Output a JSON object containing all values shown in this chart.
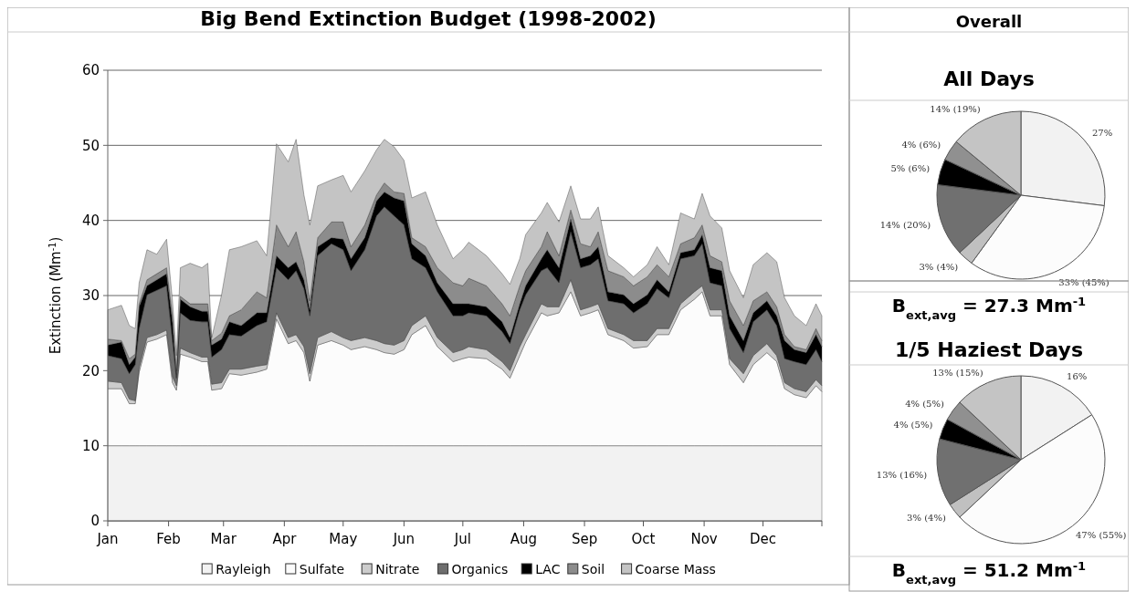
{
  "chart_data": [
    {
      "type": "area",
      "stacked": true,
      "title": "Big Bend Extinction Budget (1998-2002)",
      "ylabel": "Extinction (Mm$^{-1}$)",
      "legend": "bottom",
      "grid": "y",
      "x": [
        "--01-01",
        "--01-08",
        "--01-12",
        "--01-15",
        "--01-17",
        "--01-21",
        "--01-26",
        "--01-31",
        "--02-03",
        "--02-05",
        "--02-07",
        "--02-12",
        "--02-18",
        "--02-21",
        "--02-23",
        "--02-28",
        "--03-04",
        "--03-10",
        "--03-18",
        "--03-23",
        "--03-28",
        "--04-03",
        "--04-07",
        "--04-11",
        "--04-14",
        "--04-18",
        "--04-25",
        "--05-01",
        "--05-05",
        "--05-12",
        "--05-18",
        "--05-22",
        "--05-27",
        "--06-01",
        "--06-05",
        "--06-12",
        "--06-18",
        "--06-26",
        "--07-01",
        "--07-04",
        "--07-13",
        "--07-21",
        "--07-25",
        "--07-30",
        "--08-02",
        "--08-10",
        "--08-13",
        "--08-19",
        "--08-25",
        "--08-30",
        "--09-04",
        "--09-08",
        "--09-13",
        "--09-21",
        "--09-26",
        "--10-03",
        "--10-08",
        "--10-14",
        "--10-20",
        "--10-27",
        "--10-31",
        "--11-04",
        "--11-10",
        "--11-14",
        "--11-21",
        "--11-26",
        "--12-03",
        "--12-08",
        "--12-12",
        "--12-17",
        "--12-23",
        "--12-28",
        "--12-31"
      ],
      "xlim": [
        "--01-01",
        "--12-31"
      ],
      "xticks": [
        {
          "value": "--01-01",
          "label": "Jan"
        },
        {
          "value": "--02-01",
          "label": "Feb"
        },
        {
          "value": "--03-01",
          "label": "Mar"
        },
        {
          "value": "--04-01",
          "label": "Apr"
        },
        {
          "value": "--05-01",
          "label": "May"
        },
        {
          "value": "--06-01",
          "label": "Jun"
        },
        {
          "value": "--07-01",
          "label": "Jul"
        },
        {
          "value": "--08-01",
          "label": "Aug"
        },
        {
          "value": "--09-01",
          "label": "Sep"
        },
        {
          "value": "--10-01",
          "label": "Oct"
        },
        {
          "value": "--11-01",
          "label": "Nov"
        },
        {
          "value": "--12-01",
          "label": "Dec"
        },
        {
          "value": "--12-31",
          "label": null
        }
      ],
      "ylim": [
        0,
        60
      ],
      "yticks": [
        0,
        10,
        20,
        30,
        40,
        50,
        60
      ],
      "series": [
        {
          "name": "Rayleigh",
          "color": "#f2f2f2",
          "values": [
            10,
            10,
            10,
            10,
            10,
            10,
            10,
            10,
            10,
            10,
            10,
            10,
            10,
            10,
            10,
            10,
            10,
            10,
            10,
            10,
            10,
            10,
            10,
            10,
            10,
            10,
            10,
            10,
            10,
            10,
            10,
            10,
            10,
            10,
            10,
            10,
            10,
            10,
            10,
            10,
            10,
            10,
            10,
            10,
            10,
            10,
            10,
            10,
            10,
            10,
            10,
            10,
            10,
            10,
            10,
            10,
            10,
            10,
            10,
            10,
            10,
            10,
            10,
            10,
            10,
            10,
            10,
            10,
            10,
            10,
            10,
            10,
            10
          ]
        },
        {
          "name": "Sulfate",
          "color": "#fcfcfc",
          "values": [
            7.6,
            7.6,
            5.6,
            5.6,
            9.8,
            13.8,
            14.2,
            14.8,
            8.4,
            7.4,
            12.2,
            11.8,
            11.2,
            11.2,
            7.4,
            7.6,
            9.6,
            9.4,
            9.8,
            10.2,
            16.9,
            13.6,
            14.0,
            12.4,
            8.6,
            13.4,
            14.0,
            13.4,
            12.8,
            13.2,
            12.8,
            12.4,
            12.2,
            12.8,
            14.8,
            16.0,
            13.2,
            11.2,
            11.6,
            11.8,
            11.6,
            10.2,
            9.0,
            12.0,
            13.8,
            17.7,
            17.3,
            17.7,
            20.5,
            17.3,
            17.7,
            18.1,
            14.8,
            14.0,
            13.0,
            13.2,
            14.8,
            14.8,
            18.1,
            19.5,
            20.5,
            17.3,
            17.3,
            10.8,
            8.4,
            10.8,
            12.4,
            11.2,
            7.6,
            6.8,
            6.4,
            8.0,
            7.2
          ]
        },
        {
          "name": "Nitrate",
          "color": "#cccccc",
          "values": [
            1.0,
            0.8,
            0.6,
            0.4,
            0.6,
            0.6,
            0.6,
            0.6,
            0.8,
            0.6,
            0.8,
            0.6,
            0.6,
            0.6,
            0.8,
            0.8,
            0.6,
            0.8,
            0.8,
            0.6,
            0.8,
            0.8,
            0.8,
            0.8,
            1.0,
            1.0,
            1.2,
            1.0,
            1.2,
            1.2,
            1.2,
            1.2,
            1.2,
            1.2,
            1.2,
            1.3,
            1.2,
            1.2,
            1.2,
            1.4,
            1.2,
            1.0,
            1.0,
            1.2,
            1.0,
            1.2,
            1.2,
            0.8,
            1.6,
            0.8,
            0.8,
            0.8,
            0.8,
            0.8,
            1.0,
            0.8,
            0.8,
            0.8,
            0.8,
            1.0,
            0.8,
            0.8,
            0.8,
            0.8,
            1.2,
            1.2,
            1.2,
            0.8,
            0.8,
            0.8,
            0.8,
            0.8,
            0.8
          ]
        },
        {
          "name": "Organics",
          "color": "#6e6e6e",
          "values": [
            3.4,
            3.2,
            3.4,
            4.8,
            5.2,
            5.7,
            5.9,
            5.9,
            4.8,
            1.0,
            4.7,
            4.3,
            4.7,
            4.7,
            3.6,
            4.4,
            4.6,
            4.4,
            5.4,
            5.7,
            6.0,
            7.7,
            8.5,
            7.7,
            7.7,
            10.9,
            11.7,
            11.7,
            9.3,
            11.7,
            16.6,
            18.2,
            17.2,
            15.4,
            8.9,
            6.4,
            6.1,
            4.9,
            4.5,
            4.5,
            4.5,
            4.0,
            3.6,
            4.9,
            5.3,
            4.4,
            5.2,
            3.2,
            6.4,
            5.6,
            5.6,
            6.0,
            3.7,
            4.1,
            3.7,
            4.9,
            5.3,
            4.1,
            6.0,
            4.8,
            5.6,
            3.6,
            3.2,
            4.0,
            2.8,
            4.5,
            4.5,
            4.0,
            3.2,
            3.6,
            3.6,
            4.0,
            3.2
          ]
        },
        {
          "name": "LAC",
          "color": "#000000",
          "values": [
            1.4,
            2.2,
            1.2,
            1.0,
            2.9,
            1.2,
            1.4,
            1.6,
            2.5,
            0.5,
            1.8,
            1.8,
            1.4,
            1.4,
            1.6,
            1.4,
            1.7,
            1.4,
            1.7,
            1.2,
            1.6,
            1.6,
            1.2,
            1.2,
            0.8,
            1.2,
            0.8,
            1.4,
            1.6,
            1.6,
            2.0,
            2.0,
            2.4,
            3.2,
            2.0,
            1.6,
            1.2,
            1.6,
            1.6,
            1.2,
            1.2,
            1.3,
            0.8,
            0.8,
            1.2,
            1.6,
            2.4,
            2.0,
            1.7,
            1.2,
            1.2,
            1.6,
            1.2,
            1.2,
            1.2,
            1.2,
            1.2,
            0.8,
            0.8,
            0.8,
            1.2,
            2.0,
            2.0,
            1.7,
            1.6,
            1.2,
            1.2,
            1.3,
            2.4,
            1.6,
            1.6,
            2.0,
            2.0
          ]
        },
        {
          "name": "Soil",
          "color": "#8c8c8c",
          "values": [
            0.8,
            0.2,
            0.8,
            0.4,
            0.4,
            0.8,
            0.8,
            0.8,
            0.8,
            0.5,
            0.4,
            0.4,
            1.0,
            1.0,
            0.6,
            0.8,
            0.8,
            2.1,
            2.8,
            2.0,
            4.1,
            2.8,
            4.0,
            2.4,
            1.2,
            1.2,
            2.1,
            2.3,
            1.6,
            1.7,
            0.8,
            1.2,
            0.8,
            1.0,
            0.8,
            1.2,
            2.0,
            2.8,
            2.4,
            3.4,
            2.8,
            2.4,
            2.9,
            2.4,
            2.0,
            1.6,
            2.4,
            1.6,
            1.2,
            2.0,
            1.2,
            2.0,
            2.8,
            2.4,
            2.4,
            2.4,
            2.0,
            2.0,
            1.2,
            1.6,
            1.3,
            1.6,
            1.2,
            2.0,
            2.0,
            1.6,
            1.2,
            1.2,
            0.8,
            0.4,
            0.4,
            0.8,
            0.8
          ]
        },
        {
          "name": "Coarse Mass",
          "color": "#c4c4c4",
          "values": [
            3.9,
            4.7,
            4.4,
            3.4,
            2.8,
            4.0,
            2.6,
            3.8,
            2.0,
            2.0,
            3.8,
            5.4,
            4.8,
            5.4,
            0.4,
            5.1,
            8.8,
            8.4,
            6.8,
            5.6,
            10.8,
            11.3,
            12.3,
            8.9,
            10.1,
            6.9,
            5.6,
            6.2,
            7.3,
            7.2,
            6.0,
            5.8,
            6.0,
            4.4,
            5.3,
            7.3,
            5.7,
            3.2,
            4.8,
            4.8,
            4.0,
            4.0,
            4.2,
            3.6,
            4.8,
            4.5,
            3.9,
            4.5,
            3.2,
            3.3,
            3.7,
            3.3,
            2.0,
            1.2,
            1.2,
            1.6,
            2.4,
            1.6,
            4.1,
            2.5,
            4.2,
            5.3,
            4.5,
            4.0,
            3.7,
            4.8,
            5.2,
            6.0,
            4.9,
            4.1,
            3.2,
            3.3,
            3.3
          ]
        }
      ]
    },
    {
      "type": "pie",
      "title": "Overall",
      "subtitle": "All Days",
      "categories": [
        null,
        null,
        null,
        null,
        null,
        null,
        null
      ],
      "values": [
        27,
        33,
        3,
        14,
        5,
        4,
        14
      ],
      "colors": [
        "#f2f2f2",
        "#fcfcfc",
        "#c0c0c0",
        "#707070",
        "#000000",
        "#909090",
        "#c4c4c4"
      ],
      "value_labels": [
        "27%",
        "33% (45%)",
        "3% (4%)",
        "14% (20%)",
        "5% (6%)",
        "4% (6%)",
        "14% (19%)"
      ],
      "annotations": [
        "B$_{ext,avg}$ = 27.3 Mm$^{-1}$"
      ]
    },
    {
      "type": "pie",
      "title": "1/5 Haziest Days",
      "categories": [
        null,
        null,
        null,
        null,
        null,
        null,
        null
      ],
      "values": [
        16,
        47,
        3,
        13,
        4,
        4,
        13
      ],
      "colors": [
        "#f2f2f2",
        "#fcfcfc",
        "#c0c0c0",
        "#707070",
        "#000000",
        "#909090",
        "#c4c4c4"
      ],
      "value_labels": [
        "16%",
        "47% (55%)",
        "3% (4%)",
        "13% (16%)",
        "4% (5%)",
        "4% (5%)",
        "13% (15%)"
      ],
      "annotations": [
        "B$_{ext,avg}$ = 51.2 Mm$^{-1}$"
      ]
    }
  ]
}
